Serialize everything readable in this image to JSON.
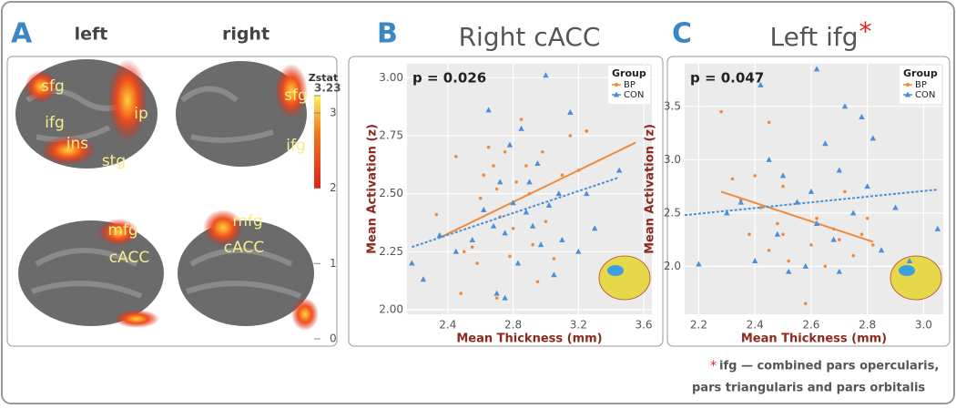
{
  "panel_a": {
    "label": "A",
    "columns": [
      "left",
      "right"
    ],
    "regions": [
      "sfg",
      "ifg",
      "ins",
      "stg",
      "ip",
      "sfg",
      "ifg",
      "mfg",
      "cACC",
      "mfg",
      "cACC"
    ],
    "colorbar": {
      "title": "Zstat",
      "lim": [
        0,
        3.23
      ],
      "color_from": 2,
      "ticks": [
        0,
        1,
        2,
        3,
        3.23
      ]
    }
  },
  "chart_data": [
    {
      "type": "scatter",
      "panel_label": "B",
      "title": "Right cACC",
      "annotation": "p = 0.026",
      "x_label": "Mean Thickness (mm)",
      "y_label": "Mean Activation (z)",
      "legend_title": "Group",
      "legend": "top-right",
      "grid": true,
      "xlim": [
        2.15,
        3.65
      ],
      "ylim": [
        1.98,
        3.06
      ],
      "xticks": [
        2.4,
        2.8,
        3.2,
        3.6
      ],
      "yticks": [
        {
          "value": 2,
          "label": "2.00"
        },
        2.25,
        {
          "value": 2.5,
          "label": "2.50"
        },
        2.75,
        {
          "value": 3,
          "label": "3.00"
        }
      ],
      "series": [
        {
          "name": "BP",
          "color": "#f08a3c",
          "x": [
            2.33,
            2.45,
            2.48,
            2.5,
            2.55,
            2.6,
            2.62,
            2.65,
            2.68,
            2.7,
            2.72,
            2.75,
            2.78,
            2.8,
            2.82,
            2.85,
            2.88,
            2.9,
            2.92,
            2.95,
            2.98,
            3.0,
            3.05,
            3.1,
            3.15,
            3.2,
            3.25,
            2.7,
            2.58
          ],
          "values": [
            2.41,
            2.66,
            2.07,
            2.25,
            2.27,
            2.48,
            2.58,
            2.7,
            2.62,
            2.52,
            2.4,
            2.68,
            2.23,
            2.35,
            2.55,
            2.82,
            2.62,
            2.5,
            2.28,
            2.12,
            2.68,
            2.38,
            2.22,
            2.58,
            2.75,
            2.6,
            2.77,
            2.05,
            2.2
          ],
          "fit_x": [
            2.35,
            3.55
          ],
          "fit_values": [
            2.31,
            2.72
          ]
        },
        {
          "name": "CON",
          "color": "#4a8fd8",
          "x": [
            2.18,
            2.25,
            2.35,
            2.45,
            2.55,
            2.62,
            2.65,
            2.68,
            2.7,
            2.72,
            2.75,
            2.78,
            2.8,
            2.83,
            2.85,
            2.88,
            2.9,
            2.92,
            2.95,
            2.97,
            3.0,
            3.02,
            3.05,
            3.08,
            3.1,
            3.15,
            3.2,
            3.25,
            3.3,
            3.45,
            2.75
          ],
          "values": [
            2.2,
            2.13,
            2.32,
            2.25,
            2.3,
            2.43,
            2.86,
            2.36,
            2.07,
            2.55,
            2.33,
            2.71,
            2.46,
            2.2,
            2.78,
            2.42,
            2.55,
            2.36,
            2.63,
            2.28,
            3.01,
            2.45,
            2.15,
            2.5,
            2.3,
            2.85,
            2.25,
            2.5,
            2.35,
            2.6,
            2.05
          ],
          "fit_x": [
            2.18,
            3.45
          ],
          "fit_values": [
            2.27,
            2.57
          ]
        }
      ]
    },
    {
      "type": "scatter",
      "panel_label": "C",
      "title": "Left ifg",
      "title_mark": "*",
      "annotation": "p = 0.047",
      "x_label": "Mean Thickness (mm)",
      "y_label": "Mean Activation (z)",
      "legend_title": "Group",
      "legend": "top-right",
      "grid": true,
      "xlim": [
        2.15,
        3.07
      ],
      "ylim": [
        1.55,
        3.9
      ],
      "xticks": [
        2.2,
        2.4,
        2.6,
        2.8,
        {
          "value": 3,
          "label": "3.0"
        }
      ],
      "yticks": [
        {
          "value": 2,
          "label": "2.0"
        },
        2.5,
        {
          "value": 3,
          "label": "3.0"
        },
        3.5
      ],
      "series": [
        {
          "name": "BP",
          "color": "#f08a3c",
          "x": [
            2.28,
            2.32,
            2.35,
            2.38,
            2.4,
            2.42,
            2.45,
            2.48,
            2.5,
            2.52,
            2.55,
            2.58,
            2.6,
            2.62,
            2.65,
            2.68,
            2.7,
            2.72,
            2.75,
            2.78,
            2.8,
            2.82,
            2.5,
            2.45
          ],
          "values": [
            3.45,
            2.82,
            2.62,
            2.3,
            2.85,
            2.55,
            2.15,
            2.4,
            2.3,
            2.05,
            2.6,
            1.65,
            2.2,
            2.45,
            2.0,
            2.35,
            2.25,
            2.7,
            2.1,
            2.3,
            2.45,
            2.2,
            2.75,
            3.35
          ],
          "fit_x": [
            2.28,
            2.82
          ],
          "fit_values": [
            2.7,
            2.23
          ]
        },
        {
          "name": "CON",
          "color": "#4a8fd8",
          "x": [
            2.2,
            2.3,
            2.35,
            2.4,
            2.42,
            2.45,
            2.5,
            2.52,
            2.55,
            2.58,
            2.6,
            2.62,
            2.62,
            2.65,
            2.68,
            2.7,
            2.72,
            2.75,
            2.78,
            2.8,
            2.82,
            2.85,
            2.9,
            2.95,
            3.05,
            2.48,
            2.7
          ],
          "values": [
            2.02,
            2.5,
            2.6,
            2.05,
            3.7,
            3.0,
            2.85,
            1.95,
            2.6,
            2.0,
            2.7,
            3.85,
            2.4,
            3.15,
            2.25,
            2.9,
            3.5,
            2.5,
            3.4,
            2.75,
            3.2,
            2.15,
            2.55,
            2.05,
            2.35,
            2.3,
            1.95
          ],
          "fit_x": [
            2.15,
            3.05
          ],
          "fit_values": [
            2.48,
            2.72
          ]
        }
      ],
      "footnote": {
        "mark": "*",
        "lines": [
          "ifg — combined pars opercularis,",
          "pars triangularis and pars orbitalis"
        ]
      }
    }
  ]
}
